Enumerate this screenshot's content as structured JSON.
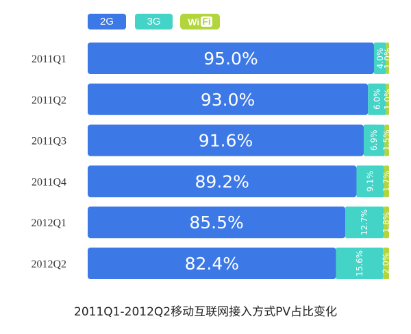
{
  "legend": {
    "items": [
      {
        "label": "2G",
        "color": "#3c78e6"
      },
      {
        "label": "3G",
        "color": "#44d3c7"
      },
      {
        "label_a": "Wi",
        "label_b": "Fi",
        "color": "#b1d53a"
      }
    ]
  },
  "chart_data": {
    "type": "bar",
    "stacked": true,
    "orientation": "horizontal",
    "title": "2011Q1-2012Q2移动互联网接入方式PV占比变化",
    "categories": [
      "2011Q1",
      "2011Q2",
      "2011Q3",
      "2011Q4",
      "2012Q1",
      "2012Q2"
    ],
    "series": [
      {
        "name": "2G",
        "color": "#3c78e6",
        "values": [
          95.0,
          93.0,
          91.6,
          89.2,
          85.5,
          82.4
        ],
        "labels": [
          "95.0%",
          "93.0%",
          "91.6%",
          "89.2%",
          "85.5%",
          "82.4%"
        ]
      },
      {
        "name": "3G",
        "color": "#44d3c7",
        "values": [
          4.0,
          6.0,
          6.9,
          9.1,
          12.7,
          15.6
        ],
        "labels": [
          "4.0%",
          "6.0%",
          "6.9%",
          "9.1%",
          "12.7%",
          "15.6%"
        ]
      },
      {
        "name": "WiFi",
        "color": "#b1d53a",
        "values": [
          1.0,
          1.0,
          1.5,
          1.7,
          1.8,
          2.0
        ],
        "labels": [
          "1.0%",
          "1.0%",
          "1.5%",
          "1.7%",
          "1.8%",
          "2.0%"
        ]
      }
    ],
    "xlim": [
      0,
      100
    ]
  }
}
